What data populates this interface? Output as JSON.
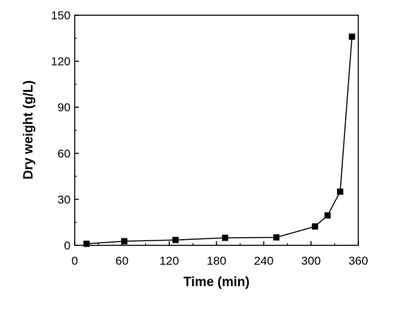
{
  "chart_data": {
    "type": "line",
    "title": "",
    "xlabel": "Time (min)",
    "ylabel": "Dry weight (g/L)",
    "xlim": [
      0,
      360
    ],
    "ylim": [
      0,
      150
    ],
    "xticks": [
      "0",
      "60",
      "120",
      "180",
      "240",
      "300",
      "360"
    ],
    "yticks": [
      "0",
      "30",
      "60",
      "90",
      "120",
      "150"
    ],
    "grid": false,
    "legend": "none",
    "marker": "square",
    "color": "#000000",
    "series": [
      {
        "x": [
          15,
          63,
          128,
          191,
          256,
          305,
          321,
          337,
          352
        ],
        "y": [
          1.0,
          2.7,
          3.5,
          4.9,
          5.2,
          12.3,
          19.5,
          35.0,
          136.0
        ]
      }
    ]
  }
}
